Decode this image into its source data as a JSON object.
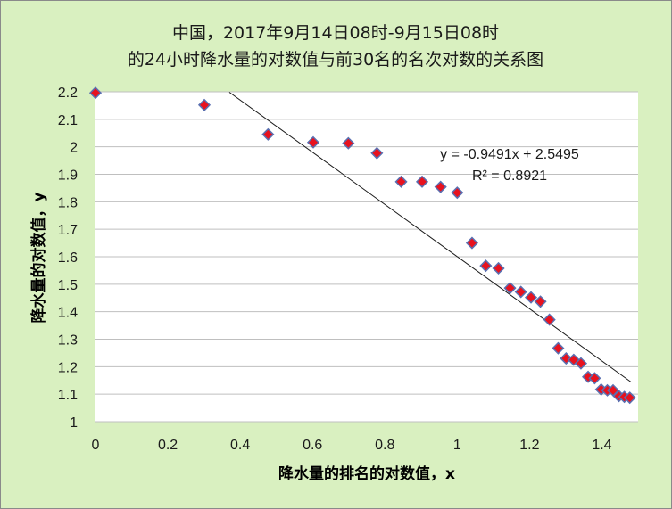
{
  "chart_data": {
    "type": "scatter",
    "title_lines": [
      "中国，2017年9月14日08时-9月15日08时",
      "的24小时降水量的对数值与前30名的名次对数的关系图"
    ],
    "xlabel": "降水量的排名的对数值，x",
    "ylabel": "降水量的对数值，y",
    "xlim": [
      0,
      1.5
    ],
    "ylim": [
      1,
      2.2
    ],
    "x_ticks": [
      0,
      0.2,
      0.4,
      0.6,
      0.8,
      1,
      1.2,
      1.4
    ],
    "x_tick_labels": [
      "0",
      "0.2",
      "0.4",
      "0.6",
      "0.8",
      "1",
      "1.2",
      "1.4"
    ],
    "y_ticks": [
      1,
      1.1,
      1.2,
      1.3,
      1.4,
      1.5,
      1.6,
      1.7,
      1.8,
      1.9,
      2,
      2.1,
      2.2
    ],
    "y_tick_labels": [
      "1",
      "1.1",
      "1.2",
      "1.3",
      "1.4",
      "1.5",
      "1.6",
      "1.7",
      "1.8",
      "1.9",
      "2",
      "2.1",
      "2.2"
    ],
    "grid": "horizontal",
    "marker_color": "#e8121e",
    "marker_edge": "#5a6fb0",
    "trendline_color": "#1a1a1a",
    "points": [
      {
        "x": 0,
        "y": 2.196
      },
      {
        "x": 0.301,
        "y": 2.152
      },
      {
        "x": 0.477,
        "y": 2.045
      },
      {
        "x": 0.602,
        "y": 2.016
      },
      {
        "x": 0.699,
        "y": 2.013
      },
      {
        "x": 0.778,
        "y": 1.977
      },
      {
        "x": 0.845,
        "y": 1.873
      },
      {
        "x": 0.903,
        "y": 1.873
      },
      {
        "x": 0.954,
        "y": 1.854
      },
      {
        "x": 1.0,
        "y": 1.833
      },
      {
        "x": 1.041,
        "y": 1.65
      },
      {
        "x": 1.079,
        "y": 1.567
      },
      {
        "x": 1.114,
        "y": 1.558
      },
      {
        "x": 1.146,
        "y": 1.486
      },
      {
        "x": 1.176,
        "y": 1.472
      },
      {
        "x": 1.204,
        "y": 1.452
      },
      {
        "x": 1.23,
        "y": 1.437
      },
      {
        "x": 1.255,
        "y": 1.371
      },
      {
        "x": 1.279,
        "y": 1.267
      },
      {
        "x": 1.301,
        "y": 1.23
      },
      {
        "x": 1.322,
        "y": 1.225
      },
      {
        "x": 1.342,
        "y": 1.212
      },
      {
        "x": 1.362,
        "y": 1.163
      },
      {
        "x": 1.38,
        "y": 1.158
      },
      {
        "x": 1.398,
        "y": 1.117
      },
      {
        "x": 1.415,
        "y": 1.114
      },
      {
        "x": 1.431,
        "y": 1.114
      },
      {
        "x": 1.447,
        "y": 1.093
      },
      {
        "x": 1.462,
        "y": 1.09
      },
      {
        "x": 1.477,
        "y": 1.087
      }
    ],
    "trendline": {
      "slope": -0.9491,
      "intercept": 2.5495,
      "x_from": 0.37,
      "x_to": 1.48
    },
    "equation_text": "y = -0.9491x + 2.5495",
    "r2_text": "R² = 0.8921"
  }
}
